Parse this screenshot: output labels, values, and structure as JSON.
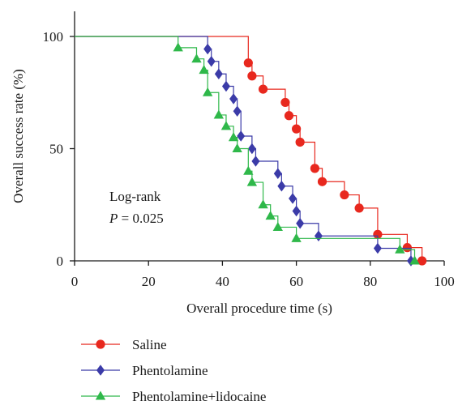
{
  "chart_data": {
    "type": "line",
    "subtype": "kaplan-meier-step",
    "xlabel": "Overall procedure time (s)",
    "ylabel": "Overall success rate (%)",
    "xlim": [
      0,
      100
    ],
    "ylim": [
      0,
      100
    ],
    "x_ticks": [
      "0",
      "20",
      "40",
      "60",
      "80",
      "100"
    ],
    "y_ticks": [
      "0",
      "50",
      "100"
    ],
    "grid": false,
    "legend_position": "bottom-left",
    "annotation": {
      "line1": "Log-rank",
      "p_symbol": "P",
      "p_value": " = 0.025"
    },
    "series": [
      {
        "name": "Saline",
        "color": "#e8281e",
        "marker": "circle",
        "steps": [
          [
            0,
            100
          ],
          [
            47,
            88.2
          ],
          [
            48,
            82.4
          ],
          [
            51,
            76.5
          ],
          [
            57,
            70.6
          ],
          [
            58,
            64.7
          ],
          [
            60,
            58.8
          ],
          [
            61,
            52.9
          ],
          [
            65,
            41.2
          ],
          [
            67,
            35.3
          ],
          [
            73,
            29.4
          ],
          [
            77,
            23.5
          ],
          [
            82,
            11.8
          ],
          [
            90,
            5.9
          ],
          [
            94,
            0
          ]
        ],
        "markers": [
          [
            47,
            88.2
          ],
          [
            48,
            82.4
          ],
          [
            51,
            76.5
          ],
          [
            57,
            70.6
          ],
          [
            58,
            64.7
          ],
          [
            60,
            58.8
          ],
          [
            61,
            52.9
          ],
          [
            65,
            41.2
          ],
          [
            67,
            35.3
          ],
          [
            73,
            29.4
          ],
          [
            77,
            23.5
          ],
          [
            82,
            11.8
          ],
          [
            90,
            5.9
          ],
          [
            94,
            0
          ]
        ]
      },
      {
        "name": "Phentolamine",
        "color": "#3b3ba8",
        "marker": "diamond",
        "steps": [
          [
            0,
            100
          ],
          [
            36,
            94.4
          ],
          [
            37,
            88.9
          ],
          [
            39,
            83.3
          ],
          [
            41,
            77.8
          ],
          [
            43,
            72.2
          ],
          [
            44,
            66.7
          ],
          [
            45,
            55.6
          ],
          [
            48,
            50
          ],
          [
            49,
            44.4
          ],
          [
            55,
            38.9
          ],
          [
            56,
            33.3
          ],
          [
            59,
            27.8
          ],
          [
            60,
            22.2
          ],
          [
            61,
            16.7
          ],
          [
            66,
            11.1
          ],
          [
            82,
            5.6
          ],
          [
            91,
            0
          ]
        ],
        "markers": [
          [
            36,
            94.4
          ],
          [
            37,
            88.9
          ],
          [
            39,
            83.3
          ],
          [
            41,
            77.8
          ],
          [
            43,
            72.2
          ],
          [
            44,
            66.7
          ],
          [
            45,
            55.6
          ],
          [
            48,
            50
          ],
          [
            49,
            44.4
          ],
          [
            55,
            38.9
          ],
          [
            56,
            33.3
          ],
          [
            59,
            27.8
          ],
          [
            60,
            22.2
          ],
          [
            61,
            16.7
          ],
          [
            66,
            11.1
          ],
          [
            82,
            5.6
          ],
          [
            91,
            0
          ]
        ]
      },
      {
        "name": "Phentolamine+lidocaine",
        "color": "#2fb84a",
        "marker": "triangle",
        "steps": [
          [
            0,
            100
          ],
          [
            28,
            95
          ],
          [
            33,
            90
          ],
          [
            35,
            85
          ],
          [
            36,
            75
          ],
          [
            39,
            65
          ],
          [
            41,
            60
          ],
          [
            43,
            55
          ],
          [
            44,
            50
          ],
          [
            47,
            40
          ],
          [
            48,
            35
          ],
          [
            51,
            25
          ],
          [
            53,
            20
          ],
          [
            55,
            15
          ],
          [
            60,
            10
          ],
          [
            88,
            5
          ],
          [
            92,
            0
          ]
        ],
        "markers": [
          [
            28,
            95
          ],
          [
            33,
            90
          ],
          [
            35,
            85
          ],
          [
            36,
            75
          ],
          [
            39,
            65
          ],
          [
            41,
            60
          ],
          [
            43,
            55
          ],
          [
            44,
            50
          ],
          [
            47,
            40
          ],
          [
            48,
            35
          ],
          [
            51,
            25
          ],
          [
            53,
            20
          ],
          [
            55,
            15
          ],
          [
            60,
            10
          ],
          [
            88,
            5
          ],
          [
            92,
            0
          ]
        ]
      }
    ]
  }
}
